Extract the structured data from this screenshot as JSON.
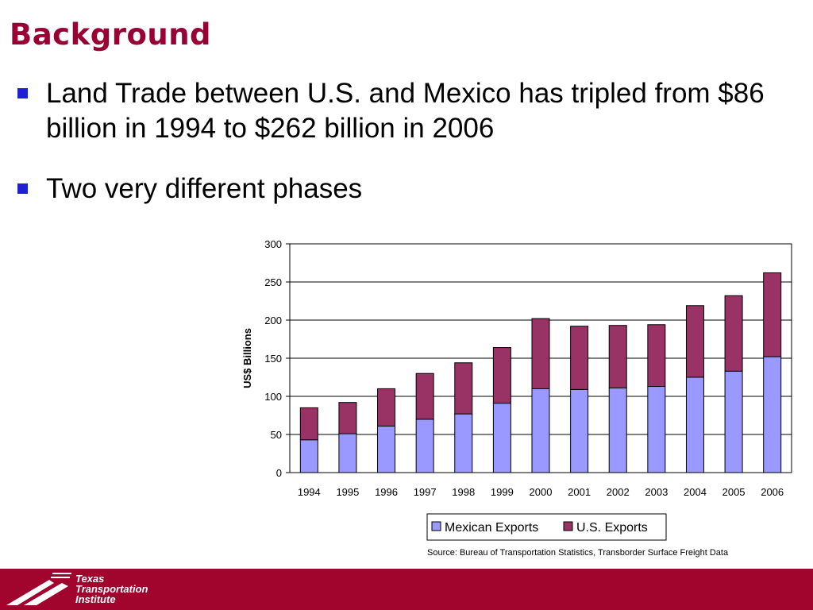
{
  "slide": {
    "title": "Background",
    "bullets": [
      "Land Trade between U.S. and Mexico has tripled from $86 billion in 1994 to $262 billion in 2006",
      "Two very different phases"
    ],
    "source": "Source: Bureau of Transportation Statistics, Transborder Surface Freight Data"
  },
  "footer": {
    "logo_lines": [
      "Texas",
      "Transportation",
      "Institute"
    ]
  },
  "colors": {
    "title": "#990033",
    "bullet_marker": "#1f1fd6",
    "footer": "#a1042c",
    "mexican_exports": "#9999ff",
    "us_exports": "#993366"
  },
  "chart_data": {
    "type": "bar",
    "stacked": true,
    "categories": [
      "1994",
      "1995",
      "1996",
      "1997",
      "1998",
      "1999",
      "2000",
      "2001",
      "2002",
      "2003",
      "2004",
      "2005",
      "2006"
    ],
    "series": [
      {
        "name": "Mexican Exports",
        "values": [
          43,
          51,
          61,
          70,
          77,
          91,
          110,
          109,
          111,
          113,
          125,
          133,
          152
        ]
      },
      {
        "name": "U.S. Exports",
        "values": [
          42,
          41,
          49,
          60,
          67,
          73,
          92,
          83,
          82,
          81,
          94,
          99,
          110
        ]
      }
    ],
    "title": "",
    "xlabel": "",
    "ylabel": "US$ Billions",
    "ylim": [
      0,
      300
    ],
    "yticks": [
      0,
      50,
      100,
      150,
      200,
      250,
      300
    ],
    "grid": true,
    "legend": "bottom-right"
  }
}
